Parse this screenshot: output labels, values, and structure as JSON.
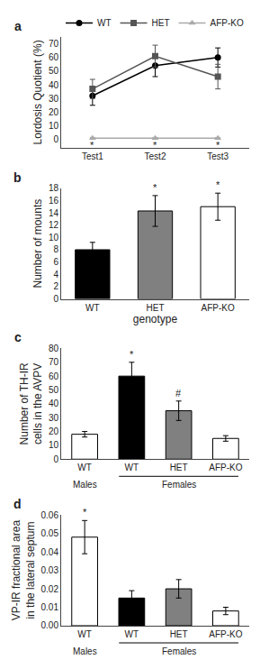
{
  "chart_data": [
    {
      "type": "line",
      "title": "a",
      "categories": [
        "Test1",
        "Test2",
        "Test3"
      ],
      "series": [
        {
          "name": "WT",
          "color": "#000000",
          "marker": "circle",
          "line_style": "solid",
          "values": [
            32,
            54,
            60
          ],
          "errors": [
            7,
            8,
            7
          ]
        },
        {
          "name": "HET",
          "color": "#555555",
          "marker": "square",
          "line_style": "solid",
          "values": [
            37,
            61,
            46
          ],
          "errors": [
            7,
            8,
            9
          ]
        },
        {
          "name": "AFP-KO",
          "color": "#aaaaaa",
          "marker": "triangle-up",
          "line_style": "solid",
          "values": [
            1,
            1,
            1
          ],
          "errors": [
            0.5,
            0.5,
            0.5
          ]
        }
      ],
      "ylabel": "Lordosis Quotient (%)",
      "ylim": [
        -6,
        75
      ],
      "yticks": [
        0,
        10,
        20,
        30,
        40,
        50,
        60,
        70
      ],
      "grid": false,
      "legend": "top",
      "annotations": [
        {
          "text": "*",
          "index": 0,
          "y": -4
        },
        {
          "text": "*",
          "index": 1,
          "y": -4
        },
        {
          "text": "*",
          "index": 2,
          "y": -4
        }
      ]
    },
    {
      "type": "bar",
      "title": "b",
      "categories": [
        "WT",
        "HET",
        "AFP-KO"
      ],
      "values": [
        8,
        14.3,
        15
      ],
      "errors": [
        1.2,
        2.5,
        2.2
      ],
      "colors": [
        "#000000",
        "#808080",
        "#ffffff"
      ],
      "xlabel": "genotype",
      "ylabel": "Number of mounts",
      "ylim": [
        0,
        18
      ],
      "yticks": [
        0,
        2,
        4,
        6,
        8,
        10,
        12,
        14,
        16,
        18
      ],
      "grid": false,
      "annotations": [
        {
          "text": "*",
          "index": 1
        },
        {
          "text": "*",
          "index": 2
        }
      ]
    },
    {
      "type": "bar",
      "title": "c",
      "categories": [
        "WT",
        "WT",
        "HET",
        "AFP-KO"
      ],
      "values": [
        18,
        60,
        35,
        15
      ],
      "errors": [
        2,
        10,
        7,
        2
      ],
      "colors": [
        "#ffffff",
        "#000000",
        "#808080",
        "#ffffff"
      ],
      "ylabel": "Number of TH-IR\ncells in the AVPV",
      "ylim": [
        0,
        80
      ],
      "yticks": [
        0,
        10,
        20,
        30,
        40,
        50,
        60,
        70,
        80
      ],
      "grid": false,
      "annotations": [
        {
          "text": "*",
          "index": 1
        },
        {
          "text": "#",
          "index": 2
        },
        {
          "text": "Males",
          "from": 0,
          "to": 0
        },
        {
          "text": "Females",
          "from": 1,
          "to": 3
        }
      ]
    },
    {
      "type": "bar",
      "title": "d",
      "categories": [
        "WT",
        "WT",
        "HET",
        "AFP-KO"
      ],
      "values": [
        0.048,
        0.015,
        0.02,
        0.008
      ],
      "errors": [
        0.009,
        0.004,
        0.005,
        0.002
      ],
      "colors": [
        "#ffffff",
        "#000000",
        "#808080",
        "#ffffff"
      ],
      "ylabel": "VP-IR fractional area\nin the lateral septum",
      "ylim": [
        0,
        0.06
      ],
      "yticks": [
        {
          "value": 0,
          "label": "0.00"
        },
        0.01,
        0.02,
        0.03,
        0.04,
        0.05,
        0.06
      ],
      "grid": false,
      "annotations": [
        {
          "text": "*",
          "index": 0
        },
        {
          "text": "Males",
          "from": 0,
          "to": 0
        },
        {
          "text": "Females",
          "from": 1,
          "to": 3
        }
      ]
    }
  ]
}
